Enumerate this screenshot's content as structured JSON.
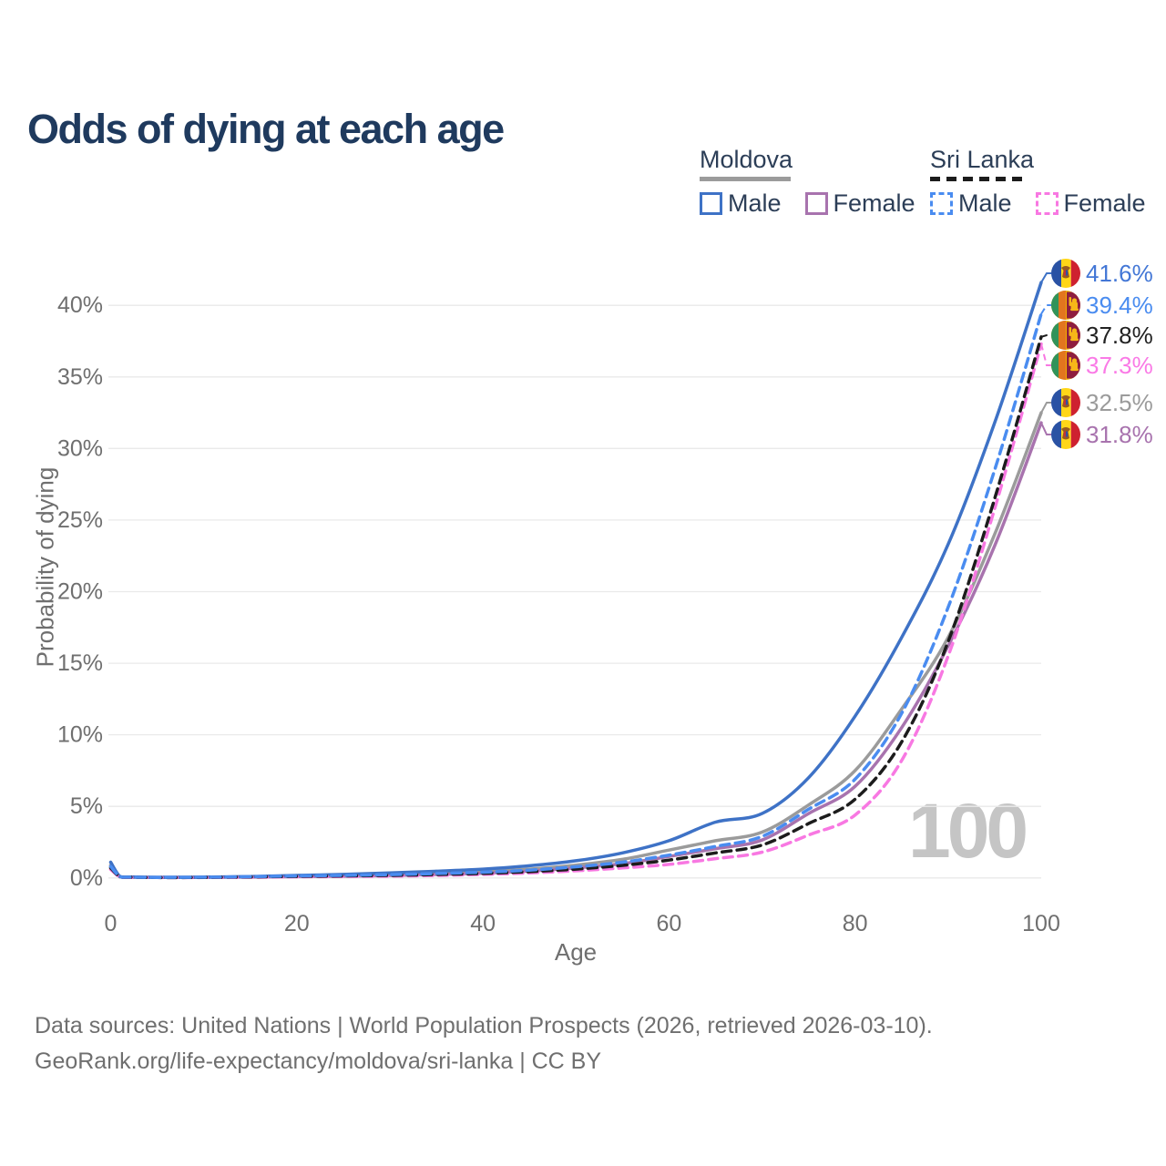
{
  "title": "Odds of dying at each age",
  "watermark": {
    "text": "100"
  },
  "legend": {
    "groups": [
      {
        "country": "Moldova",
        "line_style": "solid",
        "swatch_color": "#9B9B9B",
        "items": [
          {
            "label": "Male",
            "color": "#3E72C6",
            "dashed": false
          },
          {
            "label": "Female",
            "color": "#A873AE",
            "dashed": false
          }
        ]
      },
      {
        "country": "Sri Lanka",
        "line_style": "dashed",
        "swatch_color": "#1C1C1C",
        "items": [
          {
            "label": "Male",
            "color": "#4A8CF0",
            "dashed": true
          },
          {
            "label": "Female",
            "color": "#F878E2",
            "dashed": true
          }
        ]
      }
    ]
  },
  "footer": {
    "line1": "Data sources: United Nations | World Population Prospects (2026, retrieved 2026-03-10).",
    "line2": "GeoRank.org/life-expectancy/moldova/sri-lanka | CC BY"
  },
  "chart_data": {
    "type": "line",
    "title": "Odds of dying at each age",
    "xlabel": "Age",
    "ylabel": "Probability of dying",
    "xlim": [
      0,
      100
    ],
    "ylim_percent": [
      0,
      42
    ],
    "x_ticks": [
      0,
      20,
      40,
      60,
      80,
      100
    ],
    "y_ticks_percent": [
      0,
      5,
      10,
      15,
      20,
      25,
      30,
      35,
      40
    ],
    "grid": true,
    "legend_position": "top-right",
    "ages": [
      0,
      1,
      2,
      5,
      10,
      15,
      20,
      25,
      30,
      35,
      40,
      45,
      50,
      55,
      60,
      65,
      70,
      75,
      80,
      85,
      90,
      95,
      100
    ],
    "series": [
      {
        "id": "moldova-male",
        "name": "Moldova — Male",
        "country": "Moldova",
        "sex": "Male",
        "style": "solid",
        "color": "#3E72C6",
        "label_color": "#4377D6",
        "end_label": "41.6%",
        "end_value": 41.6,
        "values_percent": [
          1.1,
          0.1,
          0.07,
          0.05,
          0.06,
          0.1,
          0.18,
          0.25,
          0.35,
          0.47,
          0.62,
          0.85,
          1.2,
          1.75,
          2.6,
          3.9,
          4.5,
          7.0,
          11.3,
          16.8,
          23.3,
          31.8,
          41.6
        ]
      },
      {
        "id": "sri-lanka-male",
        "name": "Sri Lanka — Male",
        "country": "Sri Lanka",
        "sex": "Male",
        "style": "dashed",
        "color": "#4A8CF0",
        "label_color": "#4A8CF0",
        "end_label": "39.4%",
        "end_value": 39.4,
        "values_percent": [
          0.8,
          0.09,
          0.06,
          0.04,
          0.05,
          0.09,
          0.14,
          0.18,
          0.23,
          0.31,
          0.4,
          0.55,
          0.78,
          1.1,
          1.6,
          2.2,
          2.9,
          4.8,
          6.9,
          11.5,
          18.9,
          28.5,
          39.4
        ]
      },
      {
        "id": "sri-lanka-all",
        "name": "Sri Lanka — Both sexes",
        "country": "Sri Lanka",
        "sex": "All",
        "style": "dashed",
        "color": "#1C1C1C",
        "label_color": "#222222",
        "end_label": "37.8%",
        "end_value": 37.8,
        "values_percent": [
          0.7,
          0.08,
          0.05,
          0.03,
          0.04,
          0.07,
          0.11,
          0.14,
          0.18,
          0.24,
          0.32,
          0.44,
          0.62,
          0.88,
          1.25,
          1.75,
          2.3,
          3.8,
          5.5,
          9.5,
          16.5,
          26.5,
          37.8
        ]
      },
      {
        "id": "sri-lanka-female",
        "name": "Sri Lanka — Female",
        "country": "Sri Lanka",
        "sex": "Female",
        "style": "dashed",
        "color": "#F878E2",
        "label_color": "#FA7AE6",
        "end_label": "37.3%",
        "end_value": 37.3,
        "values_percent": [
          0.6,
          0.07,
          0.04,
          0.03,
          0.03,
          0.05,
          0.08,
          0.1,
          0.13,
          0.18,
          0.25,
          0.35,
          0.5,
          0.7,
          0.95,
          1.35,
          1.8,
          3.0,
          4.4,
          8.2,
          15.5,
          25.8,
          37.3
        ]
      },
      {
        "id": "moldova-all",
        "name": "Moldova — Both sexes",
        "country": "Moldova",
        "sex": "All",
        "style": "solid",
        "color": "#9B9B9B",
        "label_color": "#9B9B9B",
        "end_label": "32.5%",
        "end_value": 32.5,
        "values_percent": [
          0.9,
          0.08,
          0.06,
          0.04,
          0.05,
          0.08,
          0.13,
          0.18,
          0.25,
          0.34,
          0.45,
          0.62,
          0.9,
          1.3,
          1.95,
          2.6,
          3.2,
          5.1,
          7.5,
          11.8,
          16.8,
          24.0,
          32.5
        ]
      },
      {
        "id": "moldova-female",
        "name": "Moldova — Female",
        "country": "Moldova",
        "sex": "Female",
        "style": "solid",
        "color": "#A873AE",
        "label_color": "#A873AE",
        "end_label": "31.8%",
        "end_value": 31.8,
        "values_percent": [
          0.8,
          0.07,
          0.05,
          0.03,
          0.04,
          0.06,
          0.09,
          0.12,
          0.17,
          0.24,
          0.33,
          0.48,
          0.7,
          1.0,
          1.5,
          2.05,
          2.65,
          4.5,
          6.4,
          10.5,
          16.2,
          23.2,
          31.8
        ]
      }
    ]
  }
}
